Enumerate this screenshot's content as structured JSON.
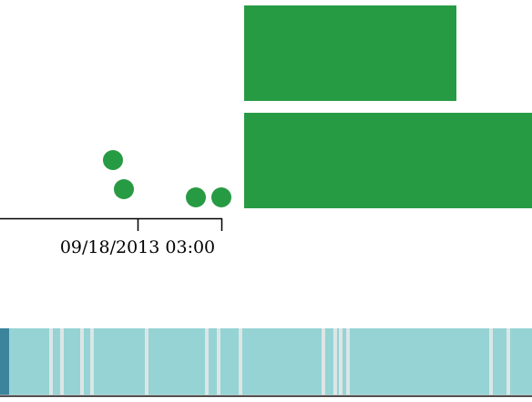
{
  "timeline": {
    "axis_label": "09/18/2013 03:00",
    "colors": {
      "event": "#279b44",
      "strip": "#96d3d4",
      "strip_edge": "#3b849b",
      "strip_gap": "#dce6e6",
      "axis": "#000000"
    }
  }
}
